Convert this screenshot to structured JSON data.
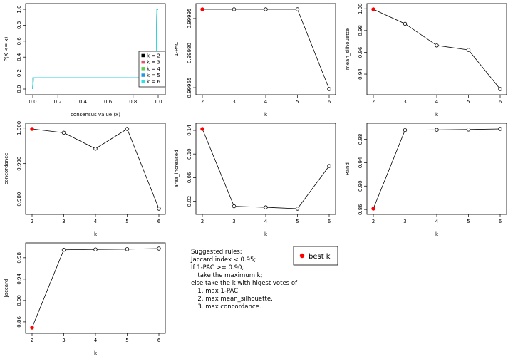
{
  "chart_data": [
    {
      "type": "line",
      "kind": "ecdf",
      "xlabel": "consensus value (x)",
      "ylabel": "P(X <= x)",
      "xlim": [
        0,
        1
      ],
      "ylim": [
        0,
        1
      ],
      "x_ticks": [
        "0.0",
        "0.2",
        "0.4",
        "0.6",
        "0.8",
        "1.0"
      ],
      "y_ticks": [
        "0.0",
        "0.2",
        "0.4",
        "0.6",
        "0.8",
        "1.0"
      ],
      "legend_position": "bottom-right",
      "series": [
        {
          "name": "k = 2",
          "color": "#000000",
          "points": [
            [
              0,
              0
            ],
            [
              0.003,
              0.14
            ],
            [
              0.985,
              0.14
            ],
            [
              0.99,
              1
            ],
            [
              1,
              1
            ]
          ]
        },
        {
          "name": "k = 3",
          "color": "#DF536B",
          "points": [
            [
              0,
              0
            ],
            [
              0.003,
              0.14
            ],
            [
              0.985,
              0.14
            ],
            [
              0.99,
              1
            ],
            [
              1,
              1
            ]
          ]
        },
        {
          "name": "k = 4",
          "color": "#61D04F",
          "points": [
            [
              0,
              0
            ],
            [
              0.003,
              0.14
            ],
            [
              0.985,
              0.14
            ],
            [
              0.99,
              1
            ],
            [
              1,
              1
            ]
          ]
        },
        {
          "name": "k = 5",
          "color": "#2297E6",
          "points": [
            [
              0,
              0
            ],
            [
              0.003,
              0.14
            ],
            [
              0.985,
              0.14
            ],
            [
              0.99,
              1
            ],
            [
              1,
              1
            ]
          ]
        },
        {
          "name": "k = 6",
          "color": "#28E2E5",
          "points": [
            [
              0,
              0
            ],
            [
              0.003,
              0.14
            ],
            [
              0.985,
              0.14
            ],
            [
              0.99,
              1
            ],
            [
              1,
              1
            ]
          ]
        }
      ]
    },
    {
      "type": "line",
      "xlabel": "k",
      "ylabel": "1-PAC",
      "x": [
        2,
        3,
        4,
        5,
        6
      ],
      "y": [
        0.99999,
        0.99999,
        0.99999,
        0.99999,
        0.999644
      ],
      "ylim": [
        0.999644,
        0.99999
      ],
      "y_ticks": [
        0.99965,
        0.9998,
        0.99995
      ],
      "y_tick_labels": [
        "0.99965",
        "0.99980",
        "0.99995"
      ],
      "best_index": 0
    },
    {
      "type": "line",
      "xlabel": "k",
      "ylabel": "mean_silhouette",
      "x": [
        2,
        3,
        4,
        5,
        6
      ],
      "y": [
        0.9995,
        0.9862,
        0.9663,
        0.9622,
        0.9263
      ],
      "ylim": [
        0.9263,
        0.9995
      ],
      "y_ticks": [
        0.94,
        0.96,
        0.98,
        1.0
      ],
      "y_tick_labels": [
        "0.94",
        "0.96",
        "0.98",
        "1.00"
      ],
      "best_index": 0
    },
    {
      "type": "line",
      "xlabel": "k",
      "ylabel": "concordance",
      "x": [
        2,
        3,
        4,
        5,
        6
      ],
      "y": [
        0.99975,
        0.99868,
        0.99419,
        0.99975,
        0.97732
      ],
      "ylim": [
        0.97732,
        0.99975
      ],
      "y_ticks": [
        0.98,
        0.99,
        1.0
      ],
      "y_tick_labels": [
        "0.980",
        "0.990",
        "1.000"
      ],
      "best_index": 0
    },
    {
      "type": "line",
      "xlabel": "k",
      "ylabel": "area_increased",
      "x": [
        2,
        3,
        4,
        5,
        6
      ],
      "y": [
        0.1424,
        0.0115,
        0.0097,
        0.0074,
        0.0797
      ],
      "ylim": [
        0.0074,
        0.1424
      ],
      "y_ticks": [
        0.02,
        0.06,
        0.1,
        0.14
      ],
      "y_tick_labels": [
        "0.02",
        "0.06",
        "0.10",
        "0.14"
      ],
      "best_index": 0
    },
    {
      "type": "line",
      "xlabel": "k",
      "ylabel": "Rand",
      "x": [
        2,
        3,
        4,
        5,
        6
      ],
      "y": [
        0.8614,
        0.9956,
        0.9961,
        0.9966,
        0.9976
      ],
      "ylim": [
        0.8614,
        0.9976
      ],
      "y_ticks": [
        0.86,
        0.9,
        0.94,
        0.98
      ],
      "y_tick_labels": [
        "0.86",
        "0.90",
        "0.94",
        "0.98"
      ],
      "best_index": 0
    },
    {
      "type": "line",
      "xlabel": "k",
      "ylabel": "Jaccard",
      "x": [
        2,
        3,
        4,
        5,
        6
      ],
      "y": [
        0.8492,
        0.9948,
        0.9955,
        0.996,
        0.9971
      ],
      "ylim": [
        0.8492,
        0.9971
      ],
      "y_ticks": [
        0.86,
        0.9,
        0.94,
        0.98
      ],
      "y_tick_labels": [
        "0.86",
        "0.90",
        "0.94",
        "0.98"
      ],
      "best_index": 0
    }
  ],
  "x_tick_labels": [
    "2",
    "3",
    "4",
    "5",
    "6"
  ],
  "rules": {
    "lines": [
      "Suggested rules:",
      "Jaccard index < 0.95;",
      "If 1-PAC >= 0.90,",
      "  take the maximum k;",
      "else take the k with higest votes of",
      "  1. max 1-PAC,",
      "  2. max mean_silhouette,",
      "  3. max concordance."
    ]
  },
  "best_legend": {
    "label": "best k",
    "color": "#FF0000"
  }
}
